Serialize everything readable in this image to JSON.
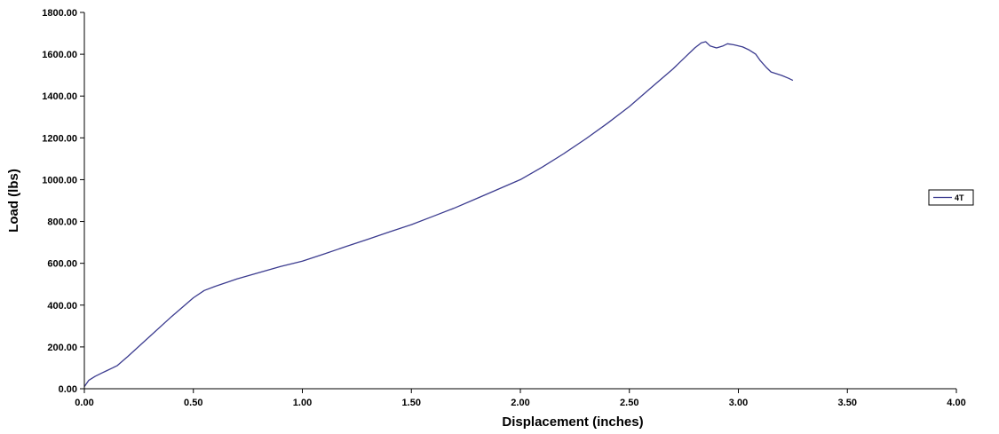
{
  "chart_data": {
    "type": "line",
    "xlabel": "Displacement (inches)",
    "ylabel": "Load (lbs)",
    "xlim": [
      0,
      4
    ],
    "ylim": [
      0,
      1800
    ],
    "x_ticks": [
      "0.00",
      "0.50",
      "1.00",
      "1.50",
      "2.00",
      "2.50",
      "3.00",
      "3.50",
      "4.00"
    ],
    "y_ticks": [
      "0.00",
      "200.00",
      "400.00",
      "600.00",
      "800.00",
      "1000.00",
      "1200.00",
      "1400.00",
      "1600.00",
      "1800.00"
    ],
    "grid": false,
    "legend_position": "right",
    "series": [
      {
        "name": "4T",
        "color": "#3b3b8f",
        "x": [
          0.0,
          0.02,
          0.05,
          0.08,
          0.1,
          0.15,
          0.2,
          0.3,
          0.4,
          0.5,
          0.55,
          0.6,
          0.7,
          0.8,
          0.9,
          1.0,
          1.1,
          1.2,
          1.3,
          1.4,
          1.5,
          1.6,
          1.7,
          1.8,
          1.9,
          2.0,
          2.1,
          2.2,
          2.3,
          2.4,
          2.5,
          2.6,
          2.7,
          2.75,
          2.8,
          2.83,
          2.85,
          2.87,
          2.9,
          2.93,
          2.95,
          2.98,
          3.02,
          3.05,
          3.08,
          3.1,
          3.13,
          3.15,
          3.18,
          3.2,
          3.23,
          3.25
        ],
        "y": [
          10,
          40,
          60,
          75,
          85,
          110,
          155,
          250,
          345,
          435,
          470,
          490,
          525,
          555,
          585,
          610,
          645,
          680,
          715,
          750,
          785,
          825,
          865,
          910,
          955,
          1000,
          1060,
          1125,
          1195,
          1270,
          1350,
          1440,
          1530,
          1580,
          1630,
          1655,
          1660,
          1640,
          1630,
          1640,
          1650,
          1645,
          1635,
          1620,
          1600,
          1570,
          1535,
          1515,
          1505,
          1498,
          1485,
          1475
        ]
      }
    ]
  }
}
